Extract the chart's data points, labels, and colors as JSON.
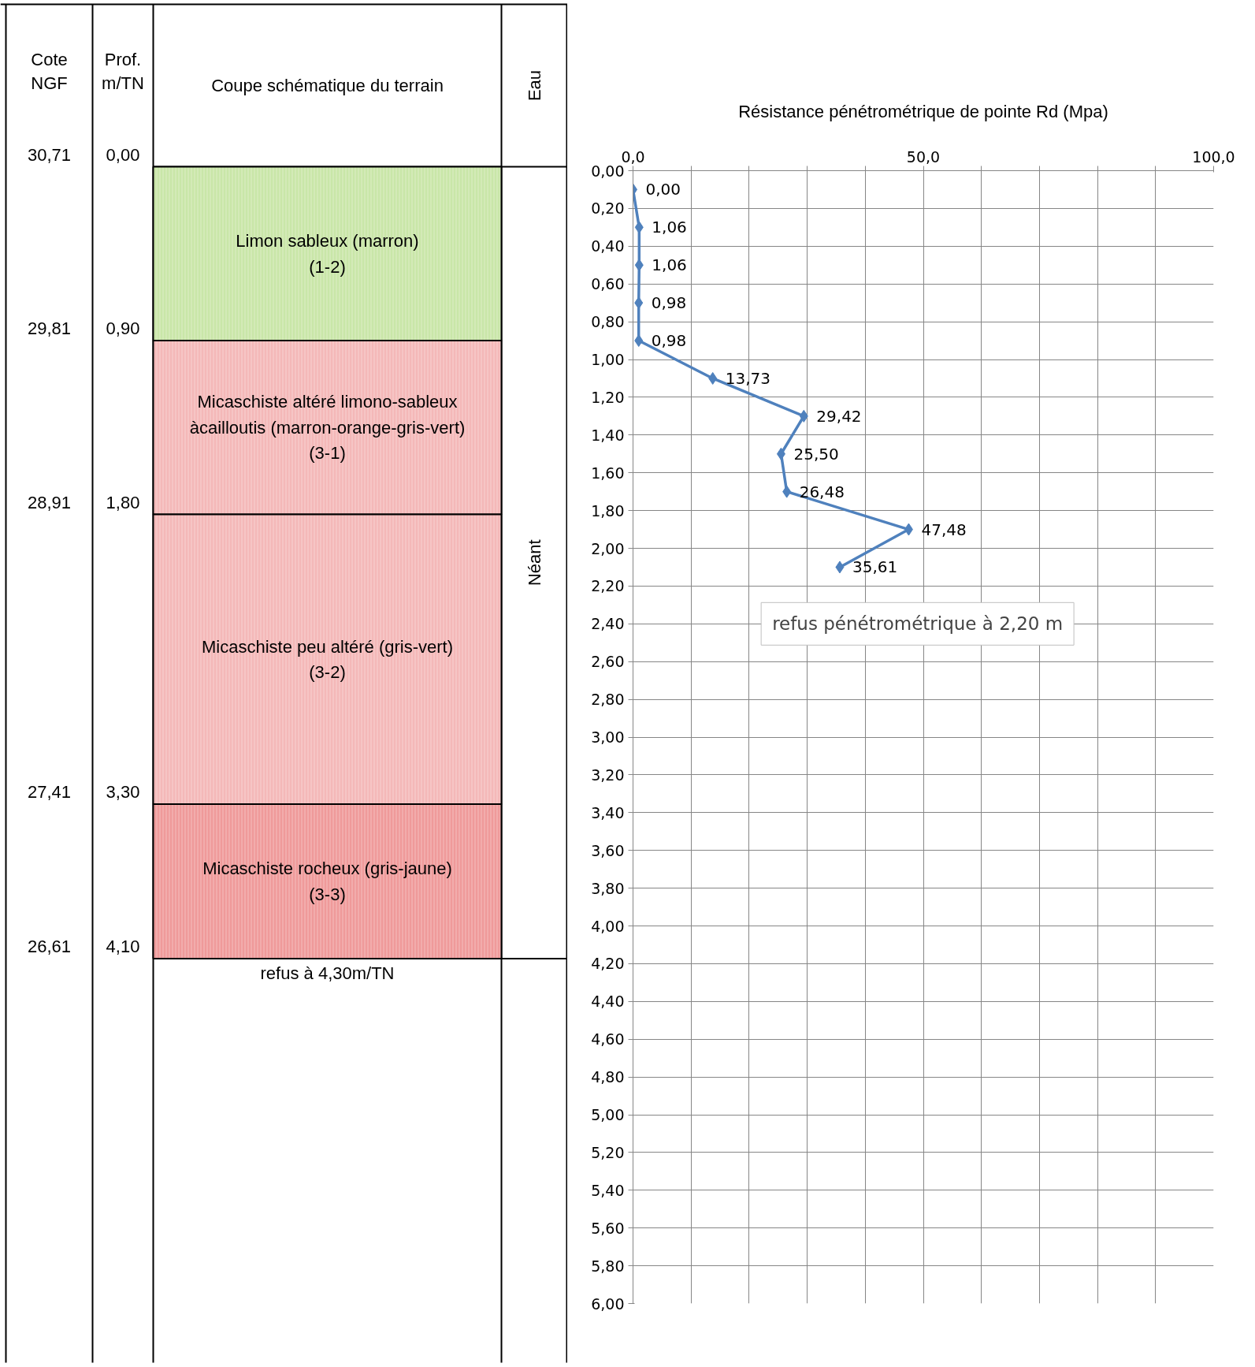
{
  "chart_data": [
    {
      "type": "other",
      "categories": [
        "Limon sableux (marron)\n(1-2)",
        "Micaschiste altéré limono-sableux\nàcailloutis (marron-orange-gris-vert)\n(3-1)",
        "Micaschiste peu altéré (gris-vert)\n(3-2)",
        "Micaschiste rocheux (gris-jaune)\n(3-3)"
      ],
      "colors": [
        "#c9e6a8",
        "#f4b8b8",
        "#f4b8b8",
        "#ef9a9a"
      ],
      "cell_labels": [
        [
          "30,71",
          "0,00"
        ],
        [
          "29,81",
          "0,90"
        ],
        [
          "28,91",
          "1,80"
        ],
        [
          "27,41",
          "3,30"
        ],
        [
          "26,61",
          "4,10"
        ]
      ],
      "annotations": [
        "Cote\nNGF",
        "Prof.\nm/TN",
        "Coupe schématique du terrain",
        "Eau",
        "Néant",
        "refus à 4,30m/TN"
      ]
    },
    {
      "type": "line",
      "title": "Résistance pénétrométrique de pointe Rd (Mpa)",
      "orientation": "horizontal",
      "series": [
        {
          "color": "#4f81bd",
          "x": [
            0.1,
            0.3,
            0.5,
            0.7,
            0.9,
            1.1,
            1.3,
            1.5,
            1.7,
            1.9,
            2.1
          ],
          "values": [
            0.0,
            1.06,
            1.06,
            0.98,
            0.98,
            13.73,
            29.42,
            25.5,
            26.48,
            47.48,
            35.61
          ],
          "value_labels": [
            "0,00",
            "1,06",
            "1,06",
            "0,98",
            "0,98",
            "13,73",
            "29,42",
            "25,50",
            "26,48",
            "47,48",
            "35,61"
          ]
        }
      ],
      "xlim": [
        0,
        100
      ],
      "xticks": [
        {
          "value": 0,
          "label": "0,0"
        },
        {
          "value": 10,
          "label": null
        },
        {
          "value": 20,
          "label": null
        },
        {
          "value": 30,
          "label": null
        },
        {
          "value": 40,
          "label": null
        },
        {
          "value": 50,
          "label": "50,0"
        },
        {
          "value": 60,
          "label": null
        },
        {
          "value": 70,
          "label": null
        },
        {
          "value": 80,
          "label": null
        },
        {
          "value": 90,
          "label": null
        },
        {
          "value": 100,
          "label": "100,0"
        }
      ],
      "ylim": [
        6.0,
        0.0
      ],
      "yticks": [
        {
          "value": 0.0,
          "label": "0,00"
        },
        {
          "value": 0.2,
          "label": "0,20"
        },
        {
          "value": 0.4,
          "label": "0,40"
        },
        {
          "value": 0.6,
          "label": "0,60"
        },
        {
          "value": 0.8,
          "label": "0,80"
        },
        {
          "value": 1.0,
          "label": "1,00"
        },
        {
          "value": 1.2,
          "label": "1,20"
        },
        {
          "value": 1.4,
          "label": "1,40"
        },
        {
          "value": 1.6,
          "label": "1,60"
        },
        {
          "value": 1.8,
          "label": "1,80"
        },
        {
          "value": 2.0,
          "label": "2,00"
        },
        {
          "value": 2.2,
          "label": "2,20"
        },
        {
          "value": 2.4,
          "label": "2,40"
        },
        {
          "value": 2.6,
          "label": "2,60"
        },
        {
          "value": 2.8,
          "label": "2,80"
        },
        {
          "value": 3.0,
          "label": "3,00"
        },
        {
          "value": 3.2,
          "label": "3,20"
        },
        {
          "value": 3.4,
          "label": "3,40"
        },
        {
          "value": 3.6,
          "label": "3,60"
        },
        {
          "value": 3.8,
          "label": "3,80"
        },
        {
          "value": 4.0,
          "label": "4,00"
        },
        {
          "value": 4.2,
          "label": "4,20"
        },
        {
          "value": 4.4,
          "label": "4,40"
        },
        {
          "value": 4.6,
          "label": "4,60"
        },
        {
          "value": 4.8,
          "label": "4,80"
        },
        {
          "value": 5.0,
          "label": "5,00"
        },
        {
          "value": 5.2,
          "label": "5,20"
        },
        {
          "value": 5.4,
          "label": "5,40"
        },
        {
          "value": 5.6,
          "label": "5,60"
        },
        {
          "value": 5.8,
          "label": "5,80"
        },
        {
          "value": 6.0,
          "label": "6,00"
        }
      ],
      "grid": true,
      "marker": "diamond",
      "line_style": "solid",
      "annotations": [
        "refus pénétrométrique à 2,20 m"
      ]
    }
  ]
}
